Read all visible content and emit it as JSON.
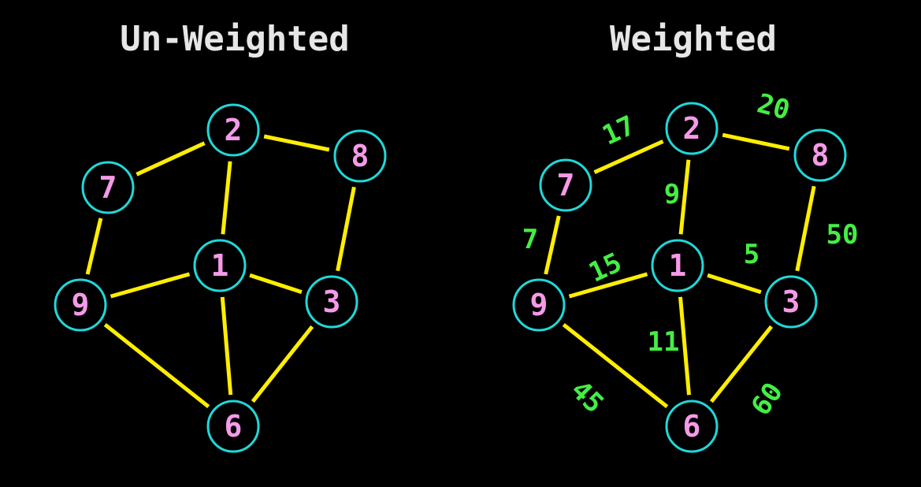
{
  "colors": {
    "background": "#000000",
    "title": "#e6e6e6",
    "edge": "#ffee00",
    "node_stroke": "#20d8d8",
    "node_label": "#f59ae8",
    "weight": "#44ee44"
  },
  "graphs": [
    {
      "id": "unweighted",
      "title": "Un-Weighted",
      "nodes": [
        {
          "id": "1",
          "label": "1"
        },
        {
          "id": "2",
          "label": "2"
        },
        {
          "id": "3",
          "label": "3"
        },
        {
          "id": "6",
          "label": "6"
        },
        {
          "id": "7",
          "label": "7"
        },
        {
          "id": "8",
          "label": "8"
        },
        {
          "id": "9",
          "label": "9"
        }
      ],
      "edges": [
        {
          "from": "7",
          "to": "2"
        },
        {
          "from": "2",
          "to": "8"
        },
        {
          "from": "2",
          "to": "1"
        },
        {
          "from": "7",
          "to": "9"
        },
        {
          "from": "8",
          "to": "3"
        },
        {
          "from": "9",
          "to": "1"
        },
        {
          "from": "1",
          "to": "3"
        },
        {
          "from": "1",
          "to": "6"
        },
        {
          "from": "9",
          "to": "6"
        },
        {
          "from": "3",
          "to": "6"
        }
      ]
    },
    {
      "id": "weighted",
      "title": "Weighted",
      "nodes": [
        {
          "id": "1",
          "label": "1"
        },
        {
          "id": "2",
          "label": "2"
        },
        {
          "id": "3",
          "label": "3"
        },
        {
          "id": "6",
          "label": "6"
        },
        {
          "id": "7",
          "label": "7"
        },
        {
          "id": "8",
          "label": "8"
        },
        {
          "id": "9",
          "label": "9"
        }
      ],
      "edges": [
        {
          "from": "7",
          "to": "2",
          "weight": "17"
        },
        {
          "from": "2",
          "to": "8",
          "weight": "20"
        },
        {
          "from": "2",
          "to": "1",
          "weight": "9"
        },
        {
          "from": "7",
          "to": "9",
          "weight": "7"
        },
        {
          "from": "8",
          "to": "3",
          "weight": "50"
        },
        {
          "from": "9",
          "to": "1",
          "weight": "15"
        },
        {
          "from": "1",
          "to": "3",
          "weight": "5"
        },
        {
          "from": "1",
          "to": "6",
          "weight": "11"
        },
        {
          "from": "9",
          "to": "6",
          "weight": "45"
        },
        {
          "from": "3",
          "to": "6",
          "weight": "60"
        }
      ]
    }
  ]
}
